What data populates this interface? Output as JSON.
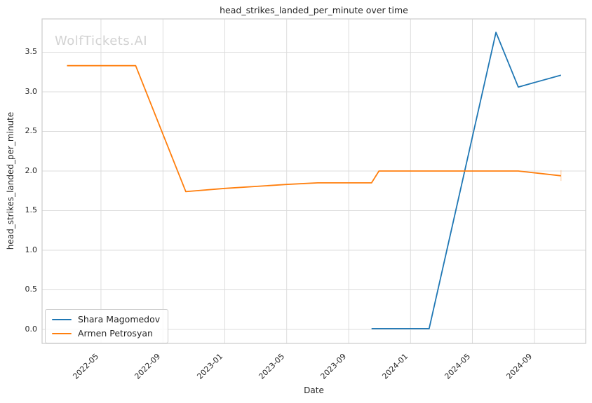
{
  "watermark": "WolfTickets.AI",
  "chart_data": {
    "type": "line",
    "title": "head_strikes_landed_per_minute over time",
    "xlabel": "Date",
    "ylabel": "head_strikes_landed_per_minute",
    "x_tick_labels": [
      "2022-05",
      "2022-09",
      "2023-01",
      "2023-05",
      "2023-09",
      "2024-01",
      "2024-05",
      "2024-09"
    ],
    "x_tick_values": [
      2022.333,
      2022.667,
      2023.0,
      2023.333,
      2023.667,
      2024.0,
      2024.333,
      2024.667
    ],
    "y_tick_labels": [
      "0.0",
      "0.5",
      "1.0",
      "1.5",
      "2.0",
      "2.5",
      "3.0",
      "3.5"
    ],
    "y_tick_values": [
      0,
      0.5,
      1,
      1.5,
      2,
      2.5,
      3,
      3.5
    ],
    "xlim": [
      2022.016,
      2024.943
    ],
    "ylim": [
      -0.177,
      3.92
    ],
    "grid": true,
    "grid_color": "#dcdcdc",
    "spine_color": "#cccccc",
    "legend_position": "lower left",
    "series": [
      {
        "name": "Shara Magomedov",
        "color": "#1f77b4",
        "points": [
          {
            "x": 2023.79,
            "y": 0.01
          },
          {
            "x": 2024.1,
            "y": 0.01
          },
          {
            "x": 2024.46,
            "y": 3.75
          },
          {
            "x": 2024.58,
            "y": 3.06
          },
          {
            "x": 2024.81,
            "y": 3.21
          }
        ]
      },
      {
        "name": "Armen Petrosyan",
        "color": "#ff7f0e",
        "points": [
          {
            "x": 2022.15,
            "y": 3.33
          },
          {
            "x": 2022.52,
            "y": 3.33
          },
          {
            "x": 2022.79,
            "y": 1.74
          },
          {
            "x": 2023.0,
            "y": 1.78
          },
          {
            "x": 2023.33,
            "y": 1.83
          },
          {
            "x": 2023.5,
            "y": 1.85
          },
          {
            "x": 2023.79,
            "y": 1.85
          },
          {
            "x": 2023.83,
            "y": 2.0
          },
          {
            "x": 2024.58,
            "y": 2.0
          },
          {
            "x": 2024.81,
            "y": 1.94
          }
        ]
      }
    ],
    "end_whisker": {
      "x": 2024.81,
      "y_low": 1.875,
      "y_high": 2.01,
      "color": "#ff7f0e",
      "opacity": 0.35
    }
  }
}
